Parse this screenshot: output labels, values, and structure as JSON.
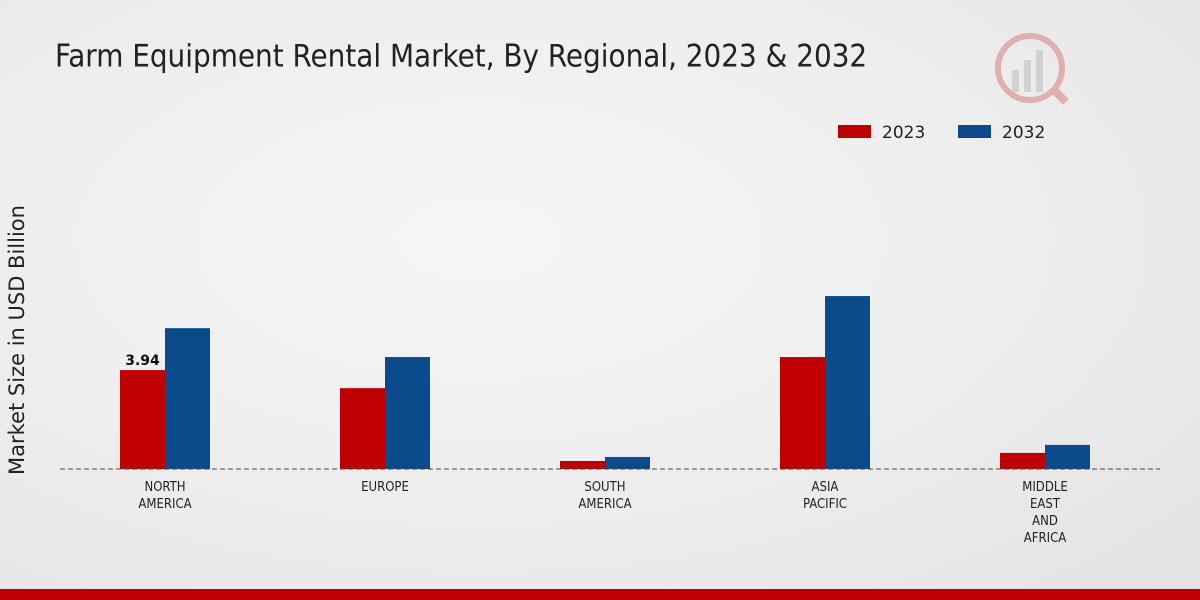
{
  "chart_data": {
    "type": "bar",
    "title": "Farm Equipment Rental Market, By Regional, 2023 & 2032",
    "y_label": "Market Size in USD Billion",
    "categories": [
      "NORTH AMERICA",
      "EUROPE",
      "SOUTH AMERICA",
      "ASIA PACIFIC",
      "MIDDLE EAST AND AFRICA"
    ],
    "series": [
      {
        "name": "2023",
        "color": "#c00000",
        "values": [
          3.94,
          3.22,
          0.32,
          4.46,
          0.64
        ]
      },
      {
        "name": "2032",
        "color": "#0b4a8b",
        "values": [
          5.61,
          4.46,
          0.48,
          6.89,
          0.96
        ]
      }
    ],
    "ylim": [
      0,
      10
    ],
    "legend": "top-right"
  }
}
